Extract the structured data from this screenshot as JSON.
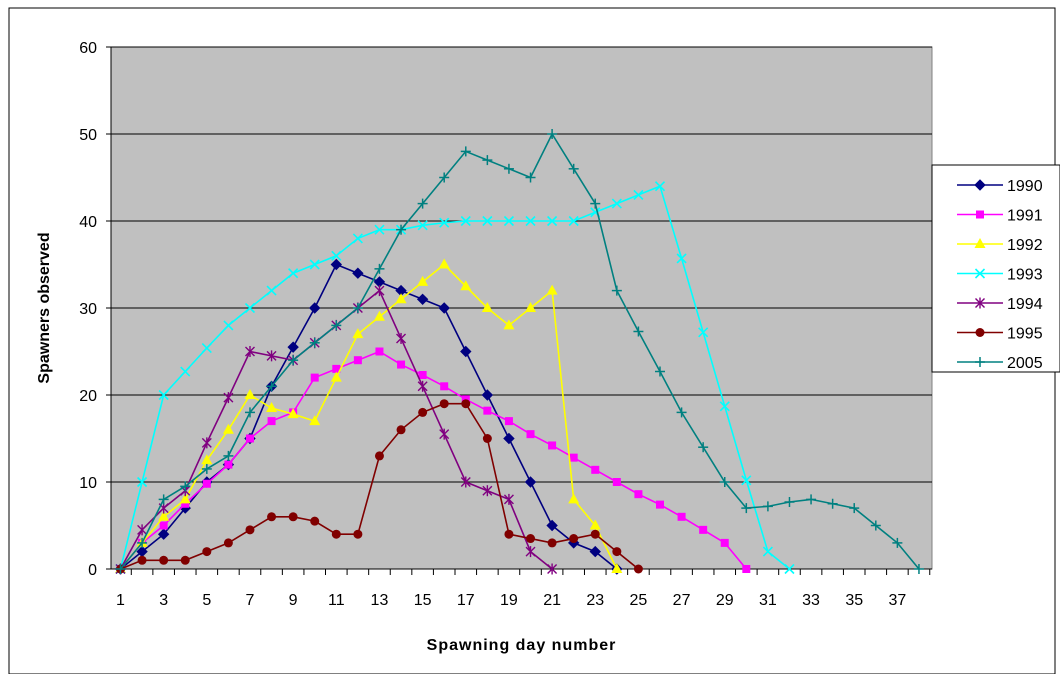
{
  "chart_data": {
    "type": "line",
    "title": "",
    "xlabel": "Spawning day number",
    "ylabel": "Spawners observed",
    "ylim": [
      0,
      60
    ],
    "yticks": [
      0,
      10,
      20,
      30,
      40,
      50,
      60
    ],
    "xlim": [
      1,
      38
    ],
    "xticks": [
      1,
      3,
      5,
      7,
      9,
      11,
      13,
      15,
      17,
      19,
      21,
      23,
      25,
      27,
      29,
      31,
      33,
      35,
      37
    ],
    "grid": "horizontal",
    "plot_background": "#c0c0c0",
    "legend_position": "right",
    "series": [
      {
        "name": "1990",
        "color": "#000080",
        "marker": "diamond",
        "x": [
          1,
          2,
          3,
          4,
          5,
          6,
          7,
          8,
          9,
          10,
          11,
          12,
          13,
          14,
          15,
          16,
          17,
          18,
          19,
          20,
          21,
          22,
          23,
          24
        ],
        "y": [
          0,
          2,
          4,
          7,
          10,
          12,
          15,
          21,
          25.5,
          30,
          35,
          34,
          33,
          32,
          31,
          30,
          25,
          20,
          15,
          10,
          5,
          3,
          2,
          0
        ]
      },
      {
        "name": "1991",
        "color": "#ff00ff",
        "marker": "square",
        "x": [
          1,
          2,
          3,
          4,
          5,
          6,
          7,
          8,
          9,
          10,
          11,
          12,
          13,
          14,
          15,
          16,
          17,
          18,
          19,
          20,
          21,
          22,
          23,
          24,
          25,
          26,
          27,
          28,
          29,
          30
        ],
        "y": [
          0,
          3,
          5,
          7.5,
          9.8,
          12,
          15,
          17,
          18,
          22,
          23,
          24,
          25,
          23.5,
          22.3,
          21,
          19.5,
          18.2,
          17,
          15.5,
          14.2,
          12.8,
          11.4,
          10,
          8.6,
          7.4,
          6,
          4.5,
          3,
          0
        ]
      },
      {
        "name": "1992",
        "color": "#ffff00",
        "marker": "triangle",
        "x": [
          1,
          2,
          3,
          4,
          5,
          6,
          7,
          8,
          9,
          10,
          11,
          12,
          13,
          14,
          15,
          16,
          17,
          18,
          19,
          20,
          21,
          22,
          23,
          24
        ],
        "y": [
          0,
          3,
          6,
          8,
          12.5,
          16,
          20,
          18.5,
          17.8,
          17,
          22,
          27,
          29,
          31,
          33,
          35,
          32.5,
          30,
          28,
          30,
          32,
          8,
          5,
          0
        ]
      },
      {
        "name": "1993",
        "color": "#00ffff",
        "marker": "x",
        "x": [
          1,
          2,
          3,
          4,
          5,
          6,
          7,
          8,
          9,
          10,
          11,
          12,
          13,
          14,
          15,
          16,
          17,
          18,
          19,
          20,
          21,
          22,
          23,
          24,
          25,
          26,
          27,
          28,
          29,
          30,
          31,
          32
        ],
        "y": [
          0,
          10,
          20,
          22.7,
          25.4,
          28,
          30,
          32,
          34,
          35,
          36,
          38,
          39,
          39,
          39.5,
          39.8,
          40,
          40,
          40,
          40,
          40,
          40,
          41,
          42,
          43,
          44,
          35.7,
          27.2,
          18.7,
          10.2,
          2,
          0
        ]
      },
      {
        "name": "1994",
        "color": "#800080",
        "marker": "star",
        "x": [
          1,
          2,
          3,
          4,
          5,
          6,
          7,
          8,
          9,
          10,
          11,
          12,
          13,
          14,
          15,
          16,
          17,
          18,
          19,
          20,
          21
        ],
        "y": [
          0,
          4.5,
          7,
          9,
          14.5,
          19.7,
          25,
          24.5,
          24,
          26,
          28,
          30,
          32,
          26.5,
          21,
          15.5,
          10,
          9,
          8,
          2,
          0
        ]
      },
      {
        "name": "1995",
        "color": "#800000",
        "marker": "circle",
        "x": [
          1,
          2,
          3,
          4,
          5,
          6,
          7,
          8,
          9,
          10,
          11,
          12,
          13,
          14,
          15,
          16,
          17,
          18,
          19,
          20,
          21,
          22,
          23,
          24,
          25
        ],
        "y": [
          0,
          1,
          1,
          1,
          2,
          3,
          4.5,
          6,
          6,
          5.5,
          4,
          4,
          13,
          16,
          18,
          19,
          19,
          15,
          4,
          3.5,
          3,
          3.5,
          4,
          2,
          0
        ]
      },
      {
        "name": "2005",
        "color": "#008080",
        "marker": "plus",
        "x": [
          1,
          2,
          3,
          4,
          5,
          6,
          7,
          8,
          9,
          10,
          11,
          12,
          13,
          14,
          15,
          16,
          17,
          18,
          19,
          20,
          21,
          22,
          23,
          24,
          25,
          26,
          27,
          28,
          29,
          30,
          31,
          32,
          33,
          34,
          35,
          36,
          37,
          38
        ],
        "y": [
          0,
          3,
          8,
          9.5,
          11.5,
          13,
          18,
          21,
          24,
          26,
          28,
          30,
          34.5,
          39,
          42,
          45,
          48,
          47,
          46,
          45,
          50,
          46,
          42,
          32,
          27.3,
          22.7,
          18,
          14,
          10,
          7,
          7.2,
          7.7,
          8,
          7.5,
          7,
          5,
          3,
          0
        ]
      }
    ]
  }
}
